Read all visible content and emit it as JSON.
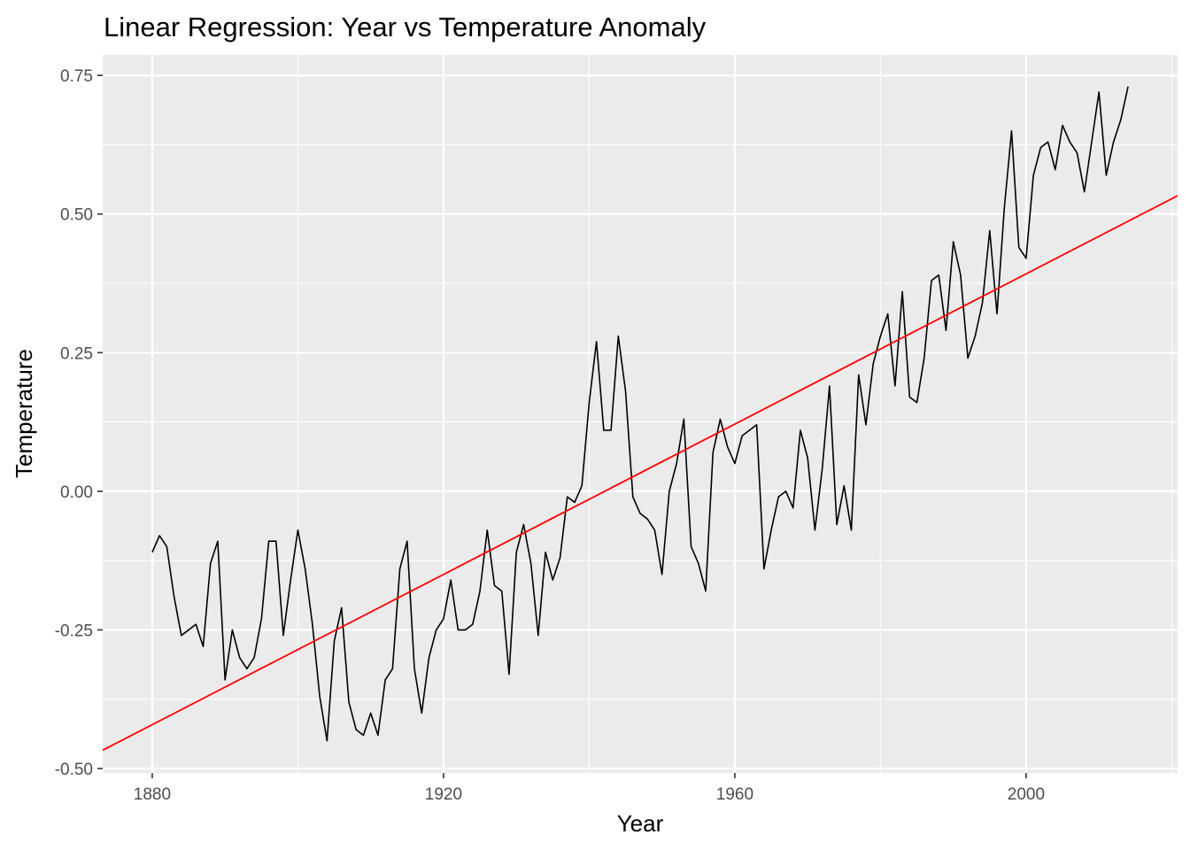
{
  "chart_data": {
    "type": "line",
    "title": "Linear Regression: Year vs Temperature Anomaly",
    "xlabel": "Year",
    "ylabel": "Temperature",
    "xlim": [
      1873.2,
      2020.8
    ],
    "ylim": [
      -0.508,
      0.787
    ],
    "x_ticks": [
      1880,
      1920,
      1960,
      2000
    ],
    "x_tick_labels": [
      "1880",
      "1920",
      "1960",
      "2000"
    ],
    "y_ticks": [
      -0.5,
      -0.25,
      0,
      0.25,
      0.5,
      0.75
    ],
    "y_tick_labels": [
      "-0.50",
      "-0.25",
      "0.00",
      "0.25",
      "0.50",
      "0.75"
    ],
    "grid": true,
    "background": "#EBEBEB",
    "series": [
      {
        "color": "#000000",
        "x": [
          1880,
          1881,
          1882,
          1883,
          1884,
          1885,
          1886,
          1887,
          1888,
          1889,
          1890,
          1891,
          1892,
          1893,
          1894,
          1895,
          1896,
          1897,
          1898,
          1899,
          1900,
          1901,
          1902,
          1903,
          1904,
          1905,
          1906,
          1907,
          1908,
          1909,
          1910,
          1911,
          1912,
          1913,
          1914,
          1915,
          1916,
          1917,
          1918,
          1919,
          1920,
          1921,
          1922,
          1923,
          1924,
          1925,
          1926,
          1927,
          1928,
          1929,
          1930,
          1931,
          1932,
          1933,
          1934,
          1935,
          1936,
          1937,
          1938,
          1939,
          1940,
          1941,
          1942,
          1943,
          1944,
          1945,
          1946,
          1947,
          1948,
          1949,
          1950,
          1951,
          1952,
          1953,
          1954,
          1955,
          1956,
          1957,
          1958,
          1959,
          1960,
          1961,
          1962,
          1963,
          1964,
          1965,
          1966,
          1967,
          1968,
          1969,
          1970,
          1971,
          1972,
          1973,
          1974,
          1975,
          1976,
          1977,
          1978,
          1979,
          1980,
          1981,
          1982,
          1983,
          1984,
          1985,
          1986,
          1987,
          1988,
          1989,
          1990,
          1991,
          1992,
          1993,
          1994,
          1995,
          1996,
          1997,
          1998,
          1999,
          2000,
          2001,
          2002,
          2003,
          2004,
          2005,
          2006,
          2007,
          2008,
          2009,
          2010,
          2011,
          2012,
          2013,
          2014
        ],
        "y": [
          -0.11,
          -0.08,
          -0.1,
          -0.19,
          -0.26,
          -0.25,
          -0.24,
          -0.28,
          -0.13,
          -0.09,
          -0.34,
          -0.25,
          -0.3,
          -0.32,
          -0.3,
          -0.23,
          -0.09,
          -0.09,
          -0.26,
          -0.16,
          -0.07,
          -0.14,
          -0.24,
          -0.37,
          -0.45,
          -0.27,
          -0.21,
          -0.38,
          -0.43,
          -0.44,
          -0.4,
          -0.44,
          -0.34,
          -0.32,
          -0.14,
          -0.09,
          -0.32,
          -0.4,
          -0.3,
          -0.25,
          -0.23,
          -0.16,
          -0.25,
          -0.25,
          -0.24,
          -0.18,
          -0.07,
          -0.17,
          -0.18,
          -0.33,
          -0.11,
          -0.06,
          -0.13,
          -0.26,
          -0.11,
          -0.16,
          -0.12,
          -0.01,
          -0.02,
          0.01,
          0.16,
          0.27,
          0.11,
          0.11,
          0.28,
          0.18,
          -0.01,
          -0.04,
          -0.05,
          -0.07,
          -0.15,
          0.0,
          0.05,
          0.13,
          -0.1,
          -0.13,
          -0.18,
          0.07,
          0.13,
          0.08,
          0.05,
          0.1,
          0.11,
          0.12,
          -0.14,
          -0.07,
          -0.01,
          0.0,
          -0.03,
          0.11,
          0.06,
          -0.07,
          0.04,
          0.19,
          -0.06,
          0.01,
          -0.07,
          0.21,
          0.12,
          0.23,
          0.28,
          0.32,
          0.19,
          0.36,
          0.17,
          0.16,
          0.24,
          0.38,
          0.39,
          0.29,
          0.45,
          0.39,
          0.24,
          0.28,
          0.34,
          0.47,
          0.32,
          0.51,
          0.65,
          0.44,
          0.42,
          0.57,
          0.62,
          0.63,
          0.58,
          0.66,
          0.63,
          0.61,
          0.54,
          0.63,
          0.72,
          0.57,
          0.63,
          0.67,
          0.73
        ]
      },
      {
        "color": "#FF0000",
        "x": [
          1873.2,
          2020.8
        ],
        "y": [
          -0.467,
          0.533
        ]
      }
    ]
  }
}
